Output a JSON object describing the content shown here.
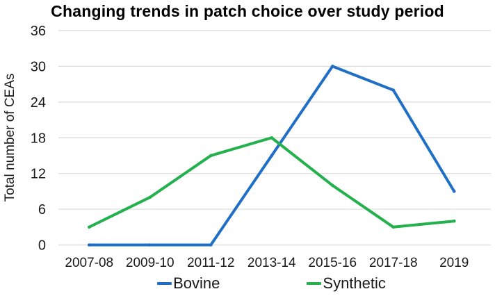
{
  "chart_data": {
    "type": "line",
    "title": "Changing trends in patch choice over study period",
    "ylabel": "Total number of CEAs",
    "xlabel": "",
    "categories": [
      "2007-08",
      "2009-10",
      "2011-12",
      "2013-14",
      "2015-16",
      "2017-18",
      "2019"
    ],
    "series": [
      {
        "name": "Bovine",
        "color": "#1f6fc6",
        "values": [
          0,
          0,
          0,
          15,
          30,
          26,
          9
        ]
      },
      {
        "name": "Synthetic",
        "color": "#22b14c",
        "values": [
          3,
          8,
          15,
          18,
          10,
          3,
          4
        ]
      }
    ],
    "ylim": [
      0,
      36
    ],
    "ytick_step": 6,
    "grid": "horizontal",
    "gridline_color": "#d9d9d9",
    "text_color": "#1a1a1a",
    "legend_position": "bottom"
  }
}
